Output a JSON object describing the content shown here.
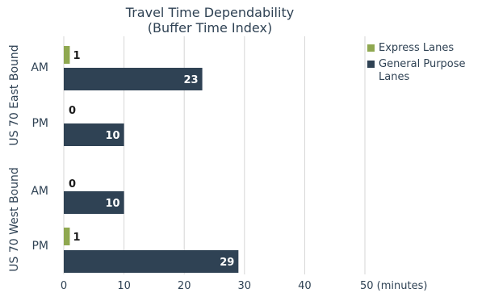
{
  "chart_data": {
    "type": "bar",
    "orientation": "horizontal",
    "title": "Travel Time Dependability",
    "subtitle": "(Buffer Time Index)",
    "groups": [
      {
        "label": "US 70 East Bound",
        "categories": [
          "AM",
          "PM"
        ]
      },
      {
        "label": "US 70 West Bound",
        "categories": [
          "AM",
          "PM"
        ]
      }
    ],
    "series": [
      {
        "name": "Express Lanes",
        "color": "#8fa850",
        "values": [
          1,
          0,
          0,
          1
        ]
      },
      {
        "name": "General Purpose Lanes",
        "color": "#2f4254",
        "values": [
          23,
          10,
          10,
          29
        ]
      }
    ],
    "x_ticks": [
      "0",
      "10",
      "20",
      "30",
      "40",
      "50 (minutes)"
    ],
    "xlim": [
      0,
      50
    ],
    "grid": "vertical",
    "legend_position": "top-right"
  }
}
